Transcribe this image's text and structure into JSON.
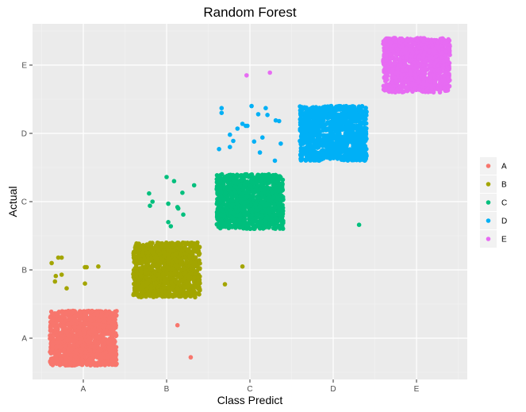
{
  "chart_data": {
    "type": "scatter",
    "title": "Random Forest",
    "xlabel": "Class Predict",
    "ylabel": "Actual",
    "categories": [
      "A",
      "B",
      "C",
      "D",
      "E"
    ],
    "grid": true,
    "legend_position": "right",
    "jitter": 0.4,
    "series": [
      {
        "name": "A",
        "color": "#F8766D",
        "diagonal_count": 1200,
        "off_diagonal": [
          {
            "x": "B",
            "y": "A",
            "dx": 0.13,
            "dy": 0.19
          },
          {
            "x": "B",
            "y": "A",
            "dx": 0.29,
            "dy": -0.28
          }
        ]
      },
      {
        "name": "B",
        "color": "#A3A500",
        "diagonal_count": 1200,
        "off_diagonal": [
          {
            "x": "A",
            "y": "B",
            "dx": -0.38,
            "dy": 0.1
          },
          {
            "x": "A",
            "y": "B",
            "dx": -0.3,
            "dy": 0.18
          },
          {
            "x": "A",
            "y": "B",
            "dx": -0.26,
            "dy": 0.18
          },
          {
            "x": "A",
            "y": "B",
            "dx": -0.33,
            "dy": -0.09
          },
          {
            "x": "A",
            "y": "B",
            "dx": -0.34,
            "dy": -0.17
          },
          {
            "x": "A",
            "y": "B",
            "dx": -0.26,
            "dy": -0.07
          },
          {
            "x": "A",
            "y": "B",
            "dx": -0.2,
            "dy": -0.27
          },
          {
            "x": "A",
            "y": "B",
            "dx": 0.02,
            "dy": -0.2
          },
          {
            "x": "A",
            "y": "B",
            "dx": 0.04,
            "dy": 0.04
          },
          {
            "x": "A",
            "y": "B",
            "dx": 0.02,
            "dy": 0.04
          },
          {
            "x": "A",
            "y": "B",
            "dx": 0.18,
            "dy": 0.05
          },
          {
            "x": "C",
            "y": "B",
            "dx": -0.3,
            "dy": -0.21
          },
          {
            "x": "C",
            "y": "B",
            "dx": -0.09,
            "dy": 0.05
          }
        ]
      },
      {
        "name": "C",
        "color": "#00BF7D",
        "diagonal_count": 1200,
        "off_diagonal": [
          {
            "x": "B",
            "y": "C",
            "dx": -0.21,
            "dy": 0.12
          },
          {
            "x": "B",
            "y": "C",
            "dx": -0.17,
            "dy": 0.0
          },
          {
            "x": "B",
            "y": "C",
            "dx": -0.2,
            "dy": -0.06
          },
          {
            "x": "B",
            "y": "C",
            "dx": 0.0,
            "dy": 0.36
          },
          {
            "x": "B",
            "y": "C",
            "dx": 0.09,
            "dy": 0.3
          },
          {
            "x": "B",
            "y": "C",
            "dx": 0.19,
            "dy": 0.13
          },
          {
            "x": "B",
            "y": "C",
            "dx": 0.33,
            "dy": 0.24
          },
          {
            "x": "B",
            "y": "C",
            "dx": 0.02,
            "dy": -0.03
          },
          {
            "x": "B",
            "y": "C",
            "dx": 0.13,
            "dy": -0.08
          },
          {
            "x": "B",
            "y": "C",
            "dx": 0.14,
            "dy": -0.1
          },
          {
            "x": "B",
            "y": "C",
            "dx": 0.2,
            "dy": -0.19
          },
          {
            "x": "B",
            "y": "C",
            "dx": 0.02,
            "dy": -0.3
          },
          {
            "x": "B",
            "y": "C",
            "dx": 0.05,
            "dy": -0.36
          },
          {
            "x": "D",
            "y": "C",
            "dx": 0.31,
            "dy": -0.34
          }
        ]
      },
      {
        "name": "D",
        "color": "#00B0F6",
        "diagonal_count": 1200,
        "off_diagonal": [
          {
            "x": "C",
            "y": "D",
            "dx": -0.34,
            "dy": 0.37
          },
          {
            "x": "C",
            "y": "D",
            "dx": -0.34,
            "dy": 0.3
          },
          {
            "x": "C",
            "y": "D",
            "dx": 0.02,
            "dy": 0.4
          },
          {
            "x": "C",
            "y": "D",
            "dx": 0.19,
            "dy": 0.37
          },
          {
            "x": "C",
            "y": "D",
            "dx": 0.21,
            "dy": 0.27
          },
          {
            "x": "C",
            "y": "D",
            "dx": 0.1,
            "dy": 0.28
          },
          {
            "x": "C",
            "y": "D",
            "dx": 0.31,
            "dy": 0.19
          },
          {
            "x": "C",
            "y": "D",
            "dx": -0.09,
            "dy": 0.14
          },
          {
            "x": "C",
            "y": "D",
            "dx": -0.15,
            "dy": 0.07
          },
          {
            "x": "C",
            "y": "D",
            "dx": -0.05,
            "dy": 0.11
          },
          {
            "x": "C",
            "y": "D",
            "dx": -0.03,
            "dy": 0.11
          },
          {
            "x": "C",
            "y": "D",
            "dx": -0.24,
            "dy": -0.02
          },
          {
            "x": "C",
            "y": "D",
            "dx": -0.2,
            "dy": -0.11
          },
          {
            "x": "C",
            "y": "D",
            "dx": -0.24,
            "dy": -0.2
          },
          {
            "x": "C",
            "y": "D",
            "dx": -0.37,
            "dy": -0.23
          },
          {
            "x": "C",
            "y": "D",
            "dx": 0.05,
            "dy": -0.12
          },
          {
            "x": "C",
            "y": "D",
            "dx": 0.15,
            "dy": -0.06
          },
          {
            "x": "C",
            "y": "D",
            "dx": 0.12,
            "dy": -0.28
          },
          {
            "x": "C",
            "y": "D",
            "dx": 0.37,
            "dy": -0.15
          },
          {
            "x": "C",
            "y": "D",
            "dx": 0.3,
            "dy": -0.4
          },
          {
            "x": "C",
            "y": "D",
            "dx": 0.35,
            "dy": 0.18
          }
        ]
      },
      {
        "name": "E",
        "color": "#E76BF3",
        "diagonal_count": 1200,
        "off_diagonal": [
          {
            "x": "C",
            "y": "E",
            "dx": -0.04,
            "dy": -0.15
          },
          {
            "x": "C",
            "y": "E",
            "dx": 0.24,
            "dy": -0.11
          }
        ]
      }
    ]
  }
}
